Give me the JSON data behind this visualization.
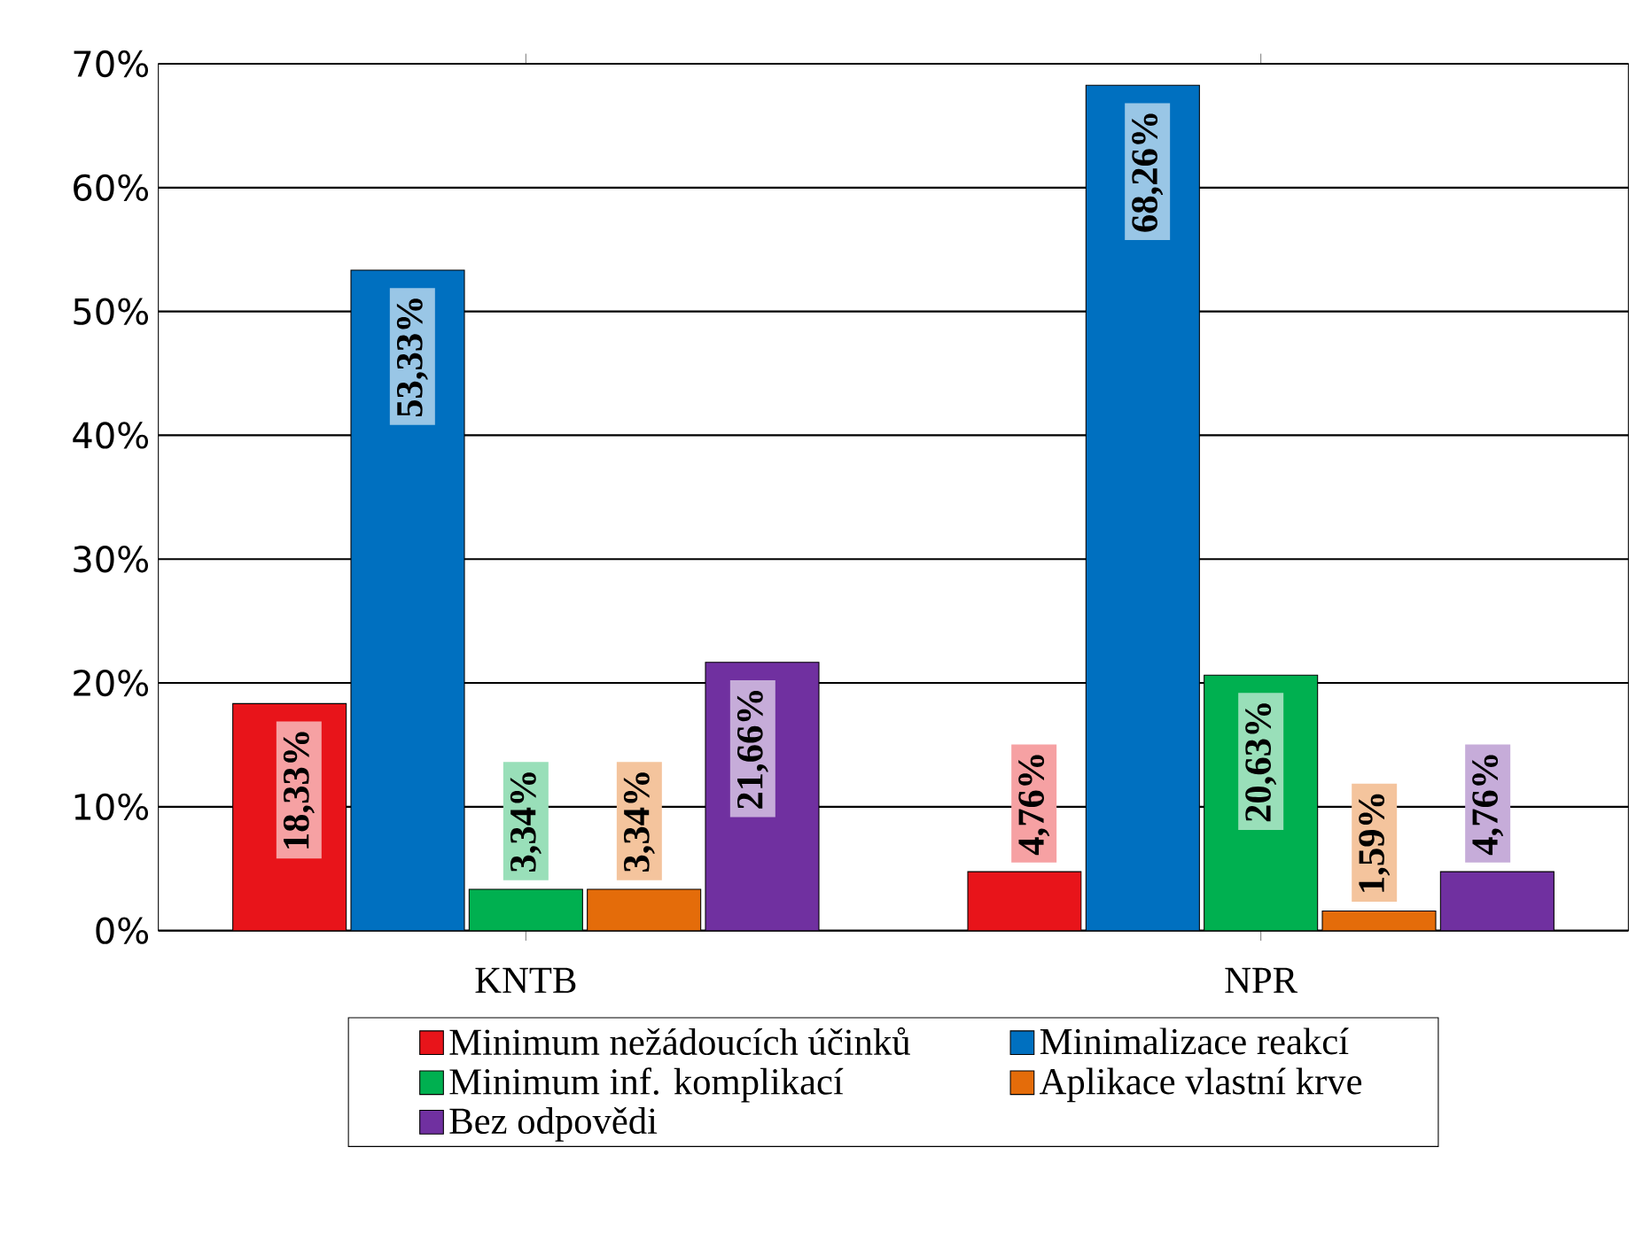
{
  "chart_data": {
    "type": "bar",
    "categories": [
      "KNTB",
      "NPR"
    ],
    "series": [
      {
        "name": "Minimum nežádoucích účinků",
        "color": "#e8141a",
        "values": [
          18.33,
          4.76
        ],
        "value_labels": [
          "18,33%",
          "4,76%"
        ]
      },
      {
        "name": "Minimalizace reakcí",
        "color": "#0070c0",
        "values": [
          53.33,
          68.26
        ],
        "value_labels": [
          "53,33%",
          "68,26%"
        ]
      },
      {
        "name": "Minimum inf. komplikací",
        "color": "#00b050",
        "values": [
          3.34,
          20.63
        ],
        "value_labels": [
          "3,34%",
          "20,63%"
        ]
      },
      {
        "name": "Aplikace vlastní krve",
        "color": "#e46c0a",
        "values": [
          3.34,
          1.59
        ],
        "value_labels": [
          "3,34%",
          "1,59%"
        ]
      },
      {
        "name": "Bez odpovědi",
        "color": "#7030a0",
        "values": [
          21.66,
          4.76
        ],
        "value_labels": [
          "21,66%",
          "4,76%"
        ]
      }
    ],
    "ylim": [
      0,
      70
    ],
    "yticks": [
      {
        "value": 0,
        "label": "0%"
      },
      {
        "value": 10,
        "label": "10%"
      },
      {
        "value": 20,
        "label": "20%"
      },
      {
        "value": 30,
        "label": "30%"
      },
      {
        "value": 40,
        "label": "40%"
      },
      {
        "value": 50,
        "label": "50%"
      },
      {
        "value": 60,
        "label": "60%"
      },
      {
        "value": 70,
        "label": "70%"
      }
    ],
    "grid": "y",
    "legend": "bottom"
  }
}
